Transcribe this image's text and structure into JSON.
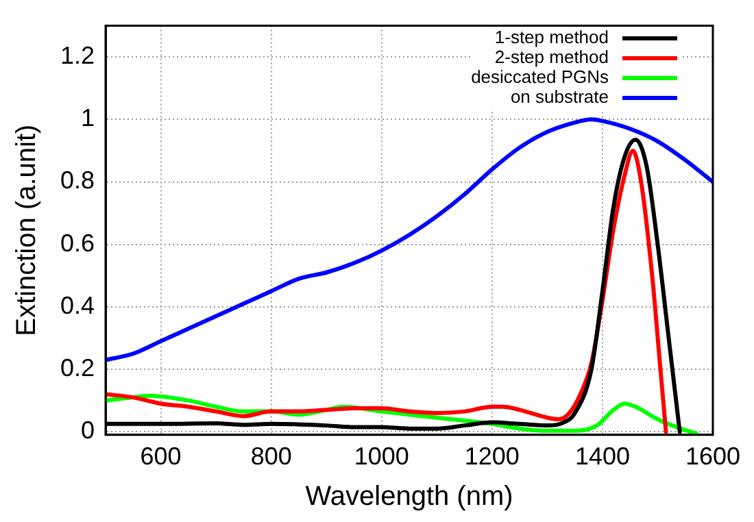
{
  "chart_data": {
    "type": "line",
    "xlabel": "Wavelength (nm)",
    "ylabel": "Extinction (a.unit)",
    "xlim": [
      500,
      1600
    ],
    "xticks": [
      600,
      800,
      1000,
      1200,
      1400,
      1600
    ],
    "ylim": [
      -0.01,
      1.3
    ],
    "yticks": [
      0,
      0.2,
      0.4,
      0.6,
      0.8,
      1,
      1.2
    ],
    "grid": true,
    "legend": "top right",
    "marker": "none",
    "line_style": "solid",
    "series": [
      {
        "name": "1-step method",
        "color": "#000000",
        "x": [
          500,
          600,
          700,
          750,
          800,
          900,
          950,
          1000,
          1050,
          1100,
          1150,
          1200,
          1250,
          1300,
          1330,
          1350,
          1380,
          1400,
          1420,
          1440,
          1460,
          1480,
          1500,
          1520,
          1540
        ],
        "values": [
          0.025,
          0.025,
          0.027,
          0.022,
          0.025,
          0.02,
          0.015,
          0.015,
          0.01,
          0.01,
          0.02,
          0.03,
          0.025,
          0.02,
          0.03,
          0.06,
          0.2,
          0.45,
          0.72,
          0.88,
          0.935,
          0.85,
          0.6,
          0.3,
          0.0
        ]
      },
      {
        "name": "2-step method",
        "color": "#ff0000",
        "x": [
          500,
          550,
          600,
          650,
          700,
          750,
          800,
          850,
          900,
          950,
          1000,
          1050,
          1100,
          1150,
          1200,
          1220,
          1250,
          1300,
          1320,
          1340,
          1360,
          1380,
          1400,
          1420,
          1440,
          1455,
          1470,
          1490,
          1505,
          1515
        ],
        "values": [
          0.12,
          0.11,
          0.09,
          0.08,
          0.065,
          0.05,
          0.065,
          0.065,
          0.07,
          0.075,
          0.075,
          0.065,
          0.06,
          0.065,
          0.08,
          0.08,
          0.07,
          0.045,
          0.04,
          0.06,
          0.12,
          0.22,
          0.42,
          0.65,
          0.82,
          0.9,
          0.8,
          0.5,
          0.2,
          0.0
        ]
      },
      {
        "name": "desiccated PGNs",
        "color": "#00ff00",
        "x": [
          500,
          550,
          580,
          650,
          700,
          750,
          800,
          850,
          900,
          930,
          1000,
          1100,
          1200,
          1250,
          1300,
          1350,
          1390,
          1420,
          1440,
          1460,
          1500,
          1550,
          1570
        ],
        "values": [
          0.1,
          0.11,
          0.115,
          0.1,
          0.08,
          0.065,
          0.065,
          0.055,
          0.07,
          0.08,
          0.065,
          0.045,
          0.025,
          0.01,
          0.003,
          0.003,
          0.02,
          0.07,
          0.09,
          0.08,
          0.04,
          0.005,
          -0.005
        ]
      },
      {
        "name": "on substrate",
        "color": "#0000ff",
        "x": [
          500,
          550,
          600,
          650,
          700,
          750,
          800,
          850,
          900,
          950,
          1000,
          1050,
          1100,
          1150,
          1200,
          1250,
          1300,
          1350,
          1380,
          1400,
          1450,
          1500,
          1550,
          1600
        ],
        "values": [
          0.23,
          0.25,
          0.29,
          0.33,
          0.37,
          0.41,
          0.45,
          0.49,
          0.51,
          0.54,
          0.58,
          0.63,
          0.69,
          0.76,
          0.84,
          0.91,
          0.96,
          0.99,
          1.0,
          0.995,
          0.97,
          0.93,
          0.87,
          0.8
        ]
      }
    ]
  }
}
